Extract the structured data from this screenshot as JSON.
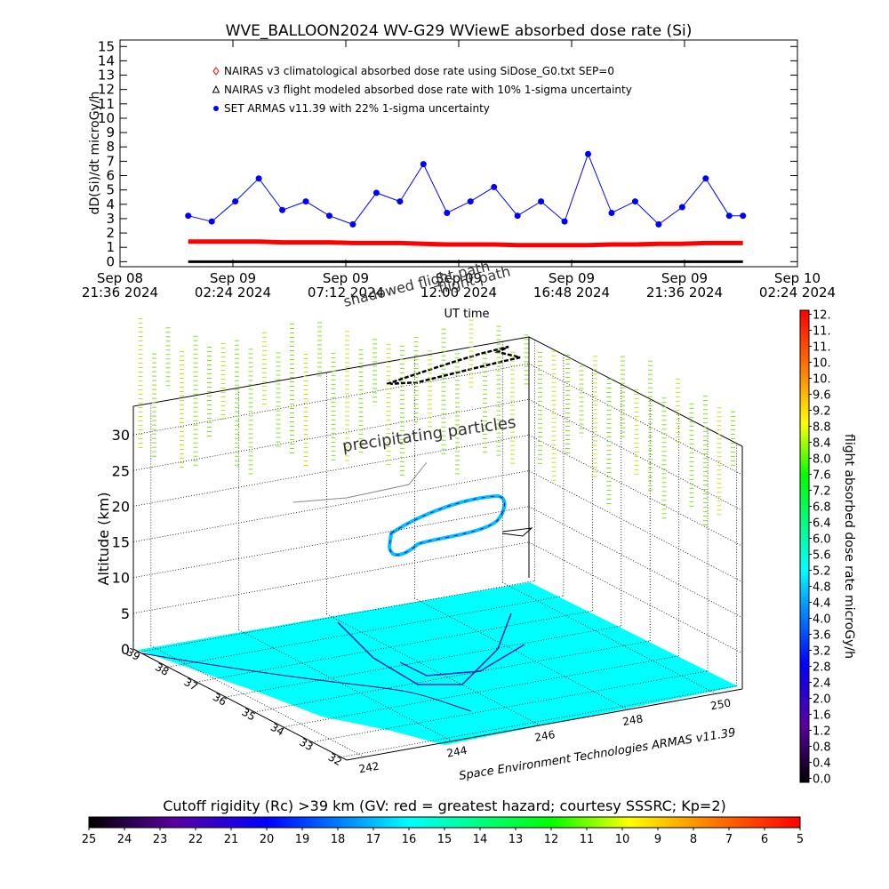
{
  "chart_data": [
    {
      "type": "line",
      "title": "WVE_BALLOON2024 WV-G29 WViewE absorbed dose rate (Si)",
      "ylabel": "dD(Si)/dt microGy/h",
      "xlabel": "UT time",
      "annotations": [
        "shadowed flight path",
        "flight path"
      ],
      "x": [
        "2024-09-09T00:30",
        "2024-09-09T01:30",
        "2024-09-09T02:30",
        "2024-09-09T03:30",
        "2024-09-09T04:30",
        "2024-09-09T05:30",
        "2024-09-09T06:30",
        "2024-09-09T07:30",
        "2024-09-09T08:30",
        "2024-09-09T09:30",
        "2024-09-09T10:30",
        "2024-09-09T11:30",
        "2024-09-09T12:30",
        "2024-09-09T13:30",
        "2024-09-09T14:30",
        "2024-09-09T15:30",
        "2024-09-09T16:30",
        "2024-09-09T17:30",
        "2024-09-09T18:30",
        "2024-09-09T19:30",
        "2024-09-09T20:30",
        "2024-09-09T21:30",
        "2024-09-09T22:30",
        "2024-09-09T23:30",
        "2024-09-10T00:05"
      ],
      "series": [
        {
          "name": "NAIRAS v3 climatological absorbed dose rate using SiDose_G0.txt SEP=0",
          "color": "#ff0000",
          "marker": "diamond",
          "values": [
            1.4,
            1.4,
            1.4,
            1.4,
            1.35,
            1.35,
            1.35,
            1.3,
            1.3,
            1.3,
            1.25,
            1.2,
            1.2,
            1.2,
            1.15,
            1.15,
            1.15,
            1.15,
            1.2,
            1.2,
            1.25,
            1.25,
            1.3,
            1.3,
            1.3
          ]
        },
        {
          "name": "NAIRAS v3 flight modeled absorbed dose rate with 10% 1-sigma uncertainty",
          "color": "#000000",
          "marker": "triangle",
          "values": [
            0,
            0,
            0,
            0,
            0,
            0,
            0,
            0,
            0,
            0,
            0,
            0,
            0,
            0,
            0,
            0,
            0,
            0,
            0,
            0,
            0,
            0,
            0,
            0,
            0
          ]
        },
        {
          "name": "SET ARMAS v11.39 with 22% 1-sigma uncertainty",
          "color": "#0000ff",
          "marker": "circle",
          "values": [
            3.2,
            2.8,
            4.2,
            5.8,
            3.6,
            4.2,
            3.2,
            2.6,
            4.8,
            4.2,
            6.8,
            3.4,
            4.2,
            5.2,
            3.2,
            4.2,
            2.8,
            7.5,
            3.4,
            4.2,
            2.6,
            3.8,
            5.8,
            3.2,
            3.2
          ]
        }
      ],
      "xlim": [
        "2024-09-08T21:36",
        "2024-09-10T02:24"
      ],
      "xticks": [
        {
          "value": "2024-09-08T21:36",
          "label": [
            "Sep 08",
            "21:36 2024"
          ]
        },
        {
          "value": "2024-09-09T02:24",
          "label": [
            "Sep 09",
            "02:24 2024"
          ]
        },
        {
          "value": "2024-09-09T07:12",
          "label": [
            "Sep 09",
            "07:12 2024"
          ]
        },
        {
          "value": "2024-09-09T12:00",
          "label": [
            "Sep 09",
            "12:00 2024"
          ]
        },
        {
          "value": "2024-09-09T16:48",
          "label": [
            "Sep 09",
            "16:48 2024"
          ]
        },
        {
          "value": "2024-09-09T21:36",
          "label": [
            "Sep 09",
            "21:36 2024"
          ]
        },
        {
          "value": "2024-09-10T02:24",
          "label": [
            "Sep 10",
            "02:24 2024"
          ]
        }
      ],
      "ylim": [
        -0.35,
        15.45
      ],
      "yticks": [
        0,
        1,
        2,
        3,
        4,
        5,
        6,
        7,
        8,
        9,
        10,
        11,
        12,
        13,
        14,
        15
      ]
    },
    {
      "type": "surface3d",
      "zlabel": "Altitude (km)",
      "annotations": [
        "precipitating particles"
      ],
      "credit": "Space Environment Technologies ARMAS v11.39",
      "zlim": [
        0,
        34
      ],
      "zticks": [
        0,
        5,
        10,
        15,
        20,
        25,
        30
      ],
      "latlim": [
        39.2,
        31.8
      ],
      "latticks": [
        39,
        38,
        37,
        36,
        35,
        34,
        33,
        32
      ],
      "lonlim": [
        241.6,
        250.6
      ],
      "lonticks": [
        242,
        244,
        246,
        248,
        250
      ]
    },
    {
      "type": "colorbar",
      "orientation": "vertical",
      "title": "flight absorbed dose rate microGy/h",
      "lim": [
        -0.1,
        11.7
      ],
      "ticks": [
        {
          "value": 0,
          "label": "0.0"
        },
        0.4,
        0.8,
        1.2,
        1.6,
        {
          "value": 2,
          "label": "2.0"
        },
        2.4,
        2.8,
        3.2,
        3.6,
        {
          "value": 4,
          "label": "4.0"
        },
        4.4,
        4.8,
        5.2,
        5.6,
        {
          "value": 6,
          "label": "6.0"
        },
        6.4,
        6.8,
        7.2,
        7.6,
        {
          "value": 8,
          "label": "8.0"
        },
        8.4,
        8.8,
        9.2,
        9.6,
        {
          "value": 10,
          "label": "10."
        },
        {
          "value": 10.4,
          "label": "10."
        },
        {
          "value": 10.8,
          "label": "11."
        },
        {
          "value": 11.2,
          "label": "11."
        },
        {
          "value": 11.6,
          "label": "12."
        }
      ]
    },
    {
      "type": "colorbar",
      "orientation": "horizontal",
      "title": "Cutoff rigidity (Rc) >39 km (GV: red = greatest hazard; courtesy SSSRC; Kp=2)",
      "lim": [
        25,
        5
      ],
      "ticks": [
        25,
        24,
        23,
        22,
        21,
        20,
        19,
        18,
        17,
        16,
        15,
        14,
        13,
        12,
        11,
        10,
        9,
        8,
        7,
        6,
        5
      ]
    }
  ]
}
